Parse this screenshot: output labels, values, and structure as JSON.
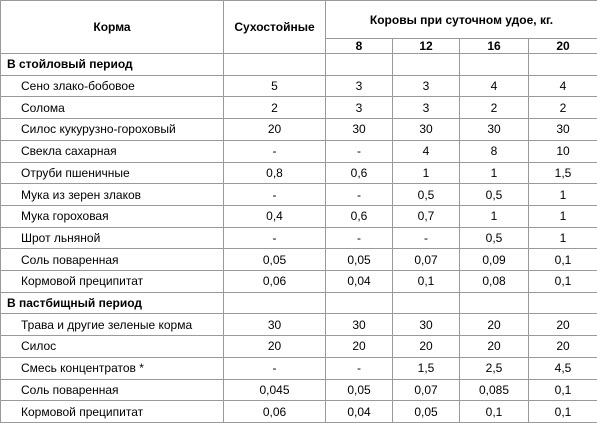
{
  "header": {
    "feed_col": "Корма",
    "dry_col": "Сухостойные",
    "cows_group": "Коровы при суточном удое, кг.",
    "yields": [
      "8",
      "12",
      "16",
      "20"
    ]
  },
  "sections": [
    {
      "title": "В стойловый период",
      "rows": [
        {
          "name": "Сено злако-бобовое",
          "values": [
            "5",
            "3",
            "3",
            "4",
            "4"
          ]
        },
        {
          "name": "Солома",
          "values": [
            "2",
            "3",
            "3",
            "2",
            "2"
          ]
        },
        {
          "name": "Силос кукурузно-гороховый",
          "values": [
            "20",
            "30",
            "30",
            "30",
            "30"
          ]
        },
        {
          "name": "Свекла сахарная",
          "values": [
            "-",
            "-",
            "4",
            "8",
            "10"
          ]
        },
        {
          "name": "Отруби пшеничные",
          "values": [
            "0,8",
            "0,6",
            "1",
            "1",
            "1,5"
          ]
        },
        {
          "name": "Мука из зерен злаков",
          "values": [
            "-",
            "-",
            "0,5",
            "0,5",
            "1"
          ]
        },
        {
          "name": "Мука гороховая",
          "values": [
            "0,4",
            "0,6",
            "0,7",
            "1",
            "1"
          ]
        },
        {
          "name": "Шрот льняной",
          "values": [
            "-",
            "-",
            "-",
            "0,5",
            "1"
          ]
        },
        {
          "name": "Соль поваренная",
          "values": [
            "0,05",
            "0,05",
            "0,07",
            "0,09",
            "0,1"
          ]
        },
        {
          "name": "Кормовой преципитат",
          "values": [
            "0,06",
            "0,04",
            "0,1",
            "0,08",
            "0,1"
          ]
        }
      ]
    },
    {
      "title": "В пастбищный период",
      "rows": [
        {
          "name": "Трава и другие зеленые корма",
          "values": [
            "30",
            "30",
            "30",
            "20",
            "20"
          ]
        },
        {
          "name": "Силос",
          "values": [
            "20",
            "20",
            "20",
            "20",
            "20"
          ]
        },
        {
          "name": "Смесь концентратов *",
          "values": [
            "-",
            "-",
            "1,5",
            "2,5",
            "4,5"
          ]
        },
        {
          "name": "Соль поваренная",
          "values": [
            "0,045",
            "0,05",
            "0,07",
            "0,085",
            "0,1"
          ]
        },
        {
          "name": "Кормовой преципитат",
          "values": [
            "0,06",
            "0,04",
            "0,05",
            "0,1",
            "0,1"
          ]
        }
      ]
    }
  ]
}
